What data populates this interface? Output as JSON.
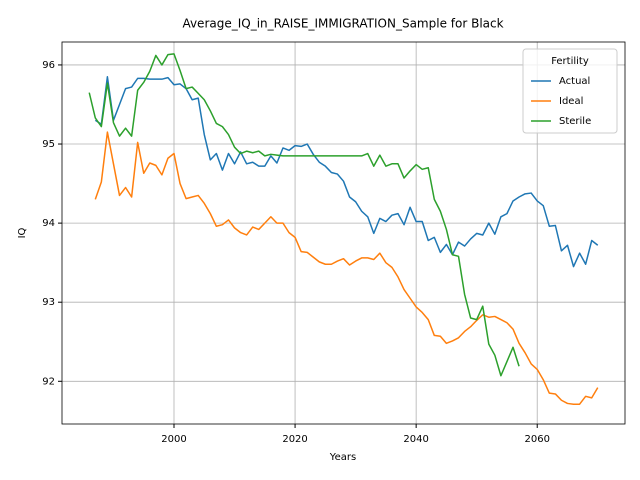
{
  "chart_data": {
    "type": "line",
    "title": "Average_IQ_in_RAISE_IMMIGRATION_Sample for Black",
    "x_label": "Years",
    "y_label": "IQ",
    "x": [
      1986,
      1987,
      1988,
      1989,
      1990,
      1991,
      1992,
      1993,
      1994,
      1995,
      1996,
      1997,
      1998,
      1999,
      2000,
      2001,
      2002,
      2003,
      2004,
      2005,
      2006,
      2007,
      2008,
      2009,
      2010,
      2011,
      2012,
      2013,
      2014,
      2015,
      2016,
      2017,
      2018,
      2019,
      2020,
      2021,
      2022,
      2023,
      2024,
      2025,
      2026,
      2027,
      2028,
      2029,
      2030,
      2031,
      2032,
      2033,
      2034,
      2035,
      2036,
      2037,
      2038,
      2039,
      2040,
      2041,
      2042,
      2043,
      2044,
      2045,
      2046,
      2047,
      2048,
      2049,
      2050,
      2051,
      2052,
      2053,
      2054,
      2055,
      2056,
      2057,
      2058,
      2059,
      2060,
      2061,
      2062,
      2063,
      2064,
      2065,
      2066,
      2067,
      2068,
      2069,
      2070
    ],
    "series": [
      {
        "name": "Actual",
        "color": "#1f77b4",
        "values": [
          null,
          95.3,
          95.25,
          95.85,
          95.3,
          95.5,
          95.7,
          95.72,
          95.83,
          95.83,
          95.82,
          95.82,
          95.82,
          95.84,
          95.75,
          95.76,
          95.7,
          95.56,
          95.58,
          95.12,
          94.8,
          94.88,
          94.67,
          94.88,
          94.75,
          94.9,
          94.75,
          94.77,
          94.72,
          94.72,
          94.85,
          94.76,
          94.95,
          94.92,
          94.98,
          94.97,
          95.0,
          94.87,
          94.77,
          94.72,
          94.64,
          94.62,
          94.53,
          94.33,
          94.27,
          94.15,
          94.08,
          93.87,
          94.06,
          94.02,
          94.1,
          94.12,
          93.98,
          94.2,
          94.02,
          94.02,
          93.78,
          93.82,
          93.63,
          93.73,
          93.6,
          93.76,
          93.71,
          93.8,
          93.87,
          93.85,
          94.0,
          93.86,
          94.08,
          94.12,
          94.28,
          94.33,
          94.37,
          94.38,
          94.28,
          94.22,
          93.96,
          93.97,
          93.65,
          93.72,
          93.45,
          93.62,
          93.48,
          93.78,
          93.72
        ]
      },
      {
        "name": "Ideal",
        "color": "#ff7f0e",
        "values": [
          null,
          94.3,
          94.52,
          95.15,
          94.75,
          94.35,
          94.45,
          94.33,
          95.02,
          94.63,
          94.76,
          94.73,
          94.61,
          94.82,
          94.88,
          94.5,
          94.31,
          94.33,
          94.35,
          94.25,
          94.12,
          93.96,
          93.98,
          94.04,
          93.94,
          93.88,
          93.85,
          93.95,
          93.92,
          94.0,
          94.08,
          94.0,
          94.0,
          93.88,
          93.82,
          93.64,
          93.63,
          93.57,
          93.51,
          93.48,
          93.48,
          93.52,
          93.55,
          93.47,
          93.52,
          93.56,
          93.56,
          93.54,
          93.62,
          93.5,
          93.44,
          93.32,
          93.16,
          93.05,
          92.94,
          92.87,
          92.78,
          92.58,
          92.57,
          92.48,
          92.51,
          92.55,
          92.63,
          92.69,
          92.77,
          92.84,
          92.81,
          92.82,
          92.78,
          92.74,
          92.66,
          92.48,
          92.36,
          92.22,
          92.15,
          92.02,
          91.85,
          91.84,
          91.76,
          91.72,
          91.71,
          91.71,
          91.81,
          91.79,
          91.92
        ]
      },
      {
        "name": "Sterile",
        "color": "#2ca02c",
        "values": [
          95.65,
          95.33,
          95.22,
          95.77,
          95.27,
          95.1,
          95.2,
          95.1,
          95.68,
          95.78,
          95.92,
          96.12,
          96.0,
          96.13,
          96.14,
          95.93,
          95.7,
          95.72,
          95.64,
          95.56,
          95.42,
          95.26,
          95.22,
          95.12,
          94.96,
          94.88,
          94.91,
          94.89,
          94.91,
          94.85,
          94.87,
          94.86,
          94.85,
          94.85,
          94.85,
          94.85,
          94.85,
          94.85,
          94.85,
          94.85,
          94.85,
          94.85,
          94.85,
          94.85,
          94.85,
          94.85,
          94.88,
          94.72,
          94.86,
          94.72,
          94.75,
          94.75,
          94.57,
          94.66,
          94.74,
          94.68,
          94.7,
          94.3,
          94.15,
          93.92,
          93.6,
          93.58,
          93.1,
          92.8,
          92.78,
          92.95,
          92.47,
          92.33,
          92.07,
          92.25,
          92.43,
          92.19,
          null,
          null,
          null,
          null,
          null,
          null,
          null,
          null,
          null,
          null,
          null,
          null,
          null
        ]
      }
    ],
    "xlim": [
      1981.5,
      2074.5
    ],
    "ylim": [
      91.46,
      96.29
    ],
    "xticks": [
      2000,
      2020,
      2040,
      2060
    ],
    "yticks": [
      92,
      93,
      94,
      95,
      96
    ],
    "grid": true,
    "legend_title": "Fertility",
    "legend_position": "upper right"
  }
}
